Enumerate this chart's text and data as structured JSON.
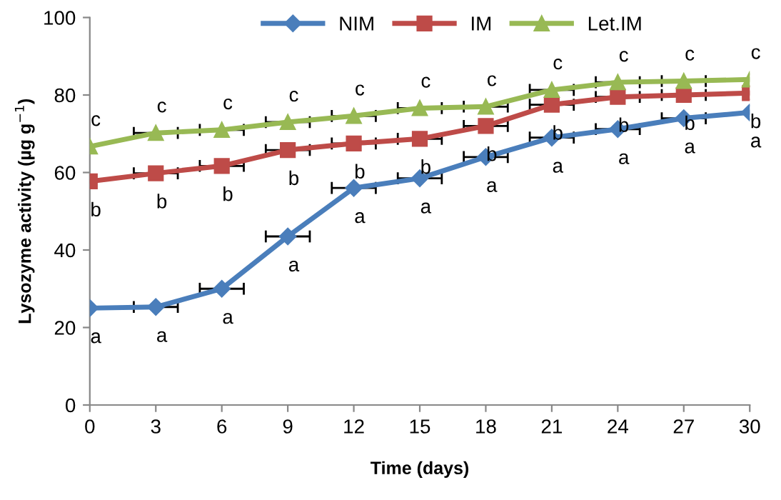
{
  "chart_data": {
    "type": "line",
    "xlabel": "Time (days)",
    "ylabel": "Lysozyme activity (µg g$^{−1}$)",
    "x": [
      0,
      3,
      6,
      9,
      12,
      15,
      18,
      21,
      24,
      27,
      30
    ],
    "series": [
      {
        "name": "NIM",
        "color": "#4a7ebb",
        "marker": "diamond",
        "values": [
          25,
          25.3,
          30,
          43.5,
          56,
          58.5,
          64,
          69,
          71.2,
          74,
          75.5
        ],
        "xerrors": [
          null,
          1,
          1,
          1,
          1,
          1,
          1,
          1,
          1,
          1,
          null
        ]
      },
      {
        "name": "IM",
        "color": "#be4b48",
        "marker": "square",
        "values": [
          57.7,
          59.8,
          61.7,
          65.8,
          67.5,
          68.7,
          72,
          77.5,
          79.5,
          80,
          80.5
        ],
        "xerrors": [
          null,
          1,
          1,
          1,
          1,
          1,
          1,
          1,
          1,
          1,
          null
        ]
      },
      {
        "name": "Let.IM",
        "color": "#98b954",
        "marker": "triangle",
        "values": [
          66.7,
          70.2,
          71,
          73,
          74.6,
          76.6,
          77,
          81.3,
          83.3,
          83.6,
          84
        ],
        "xerrors": [
          null,
          1,
          1,
          1,
          1,
          1,
          1,
          1,
          1,
          1,
          null
        ]
      }
    ],
    "xlim": [
      0,
      30
    ],
    "xticks": [
      0,
      3,
      6,
      9,
      12,
      15,
      18,
      21,
      24,
      27,
      30
    ],
    "ylim": [
      0,
      100
    ],
    "yticks": [
      0,
      20,
      40,
      60,
      80,
      100
    ],
    "grid": false,
    "legend": "top",
    "annotations": [
      {
        "text": "c",
        "x": 0,
        "y": 66.7
      },
      {
        "text": "b",
        "x": 0,
        "y": 57.7
      },
      {
        "text": "a",
        "x": 0,
        "y": 25
      },
      {
        "text": "c",
        "x": 3,
        "y": 70.2
      },
      {
        "text": "b",
        "x": 3,
        "y": 59.8
      },
      {
        "text": "a",
        "x": 3,
        "y": 25.3
      },
      {
        "text": "c",
        "x": 6,
        "y": 71
      },
      {
        "text": "b",
        "x": 6,
        "y": 61.7
      },
      {
        "text": "a",
        "x": 6,
        "y": 30
      },
      {
        "text": "c",
        "x": 9,
        "y": 73
      },
      {
        "text": "b",
        "x": 9,
        "y": 65.8
      },
      {
        "text": "a",
        "x": 9,
        "y": 43.5
      },
      {
        "text": "c",
        "x": 12,
        "y": 74.6
      },
      {
        "text": "b",
        "x": 12,
        "y": 67.5
      },
      {
        "text": "a",
        "x": 12,
        "y": 56
      },
      {
        "text": "c",
        "x": 15,
        "y": 76.6
      },
      {
        "text": "b",
        "x": 15,
        "y": 68.7
      },
      {
        "text": "a",
        "x": 15,
        "y": 58.5
      },
      {
        "text": "c",
        "x": 18,
        "y": 77
      },
      {
        "text": "b",
        "x": 18,
        "y": 72
      },
      {
        "text": "a",
        "x": 18,
        "y": 64
      },
      {
        "text": "c",
        "x": 21,
        "y": 81.3
      },
      {
        "text": "b",
        "x": 21,
        "y": 77.5
      },
      {
        "text": "a",
        "x": 21,
        "y": 69
      },
      {
        "text": "c",
        "x": 24,
        "y": 83.3
      },
      {
        "text": "b",
        "x": 24,
        "y": 79.5
      },
      {
        "text": "a",
        "x": 24,
        "y": 71.2
      },
      {
        "text": "c",
        "x": 27,
        "y": 83.6
      },
      {
        "text": "b",
        "x": 27,
        "y": 80
      },
      {
        "text": "a",
        "x": 27,
        "y": 74
      },
      {
        "text": "c",
        "x": 30,
        "y": 84
      },
      {
        "text": "b",
        "x": 30,
        "y": 80.5
      },
      {
        "text": "a",
        "x": 30,
        "y": 75.5
      }
    ]
  }
}
